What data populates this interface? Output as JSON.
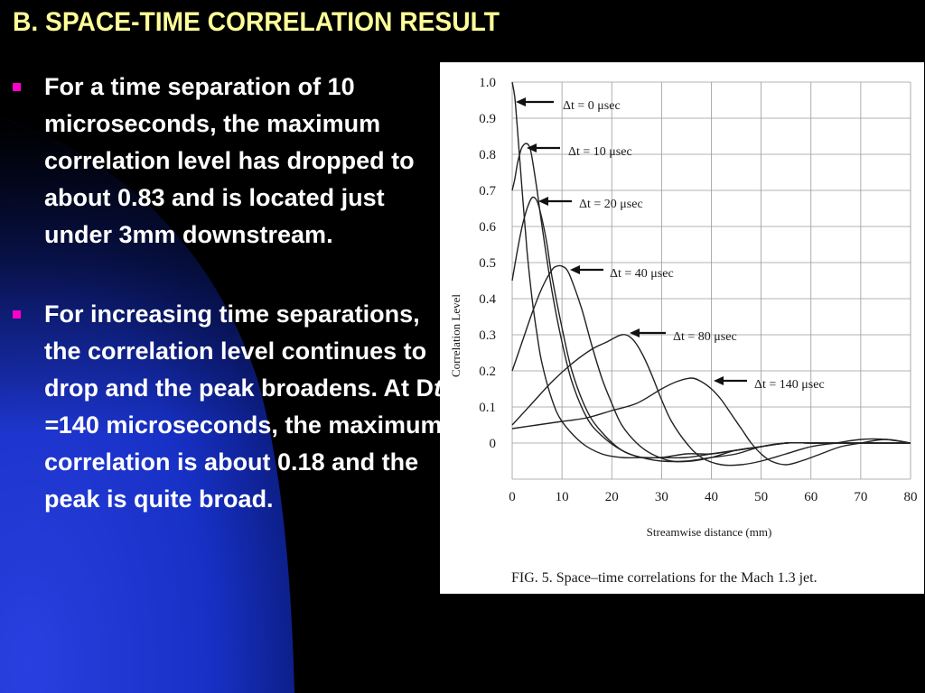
{
  "slide": {
    "title": "B. SPACE-TIME CORRELATION RESULT",
    "accent_colors": {
      "title": "#ffff99",
      "bullet_marker": "#ff00cc",
      "body_text": "#ffffff",
      "sweep": "#1a33cc",
      "background": "#000000"
    },
    "bullets": [
      {
        "segments": [
          "For a time separation of 10 microseconds, the maximum correlation level has dropped to about 0.83 and is located just under 3mm downstream."
        ]
      },
      {
        "segments": [
          "For increasing time separations, the correlation level continues to drop and the peak broadens. At D",
          "t =",
          "140 microseconds, the maximum correlation is about 0.18 and the peak is quite broad."
        ]
      }
    ]
  },
  "chart_data": {
    "type": "line",
    "title": "",
    "caption": "FIG. 5.  Space–time correlations for the Mach 1.3 jet.",
    "xlabel": "Streamwise distance (mm)",
    "ylabel": "Correlation Level",
    "xlim": [
      0,
      80
    ],
    "ylim": [
      -0.1,
      1.0
    ],
    "x_ticks": [
      "0",
      "10",
      "20",
      "30",
      "40",
      "50",
      "60",
      "70",
      "80"
    ],
    "y_ticks": [
      "1.0",
      "0.9",
      "0.8",
      "0.7",
      "0.6",
      "0.5",
      "0.4",
      "0.3",
      "0.2",
      "0.1",
      "0"
    ],
    "grid": true,
    "series": [
      {
        "name": "Δt = 0 μsec",
        "x": [
          0,
          0.5,
          1,
          2,
          3,
          4,
          5,
          6,
          8,
          10,
          14,
          18,
          22,
          26,
          30,
          35,
          40,
          45,
          50,
          55,
          60,
          65,
          70,
          75,
          80
        ],
        "y": [
          1.0,
          0.96,
          0.88,
          0.7,
          0.53,
          0.4,
          0.3,
          0.22,
          0.12,
          0.06,
          0.0,
          -0.03,
          -0.04,
          -0.04,
          -0.04,
          -0.03,
          -0.03,
          -0.02,
          -0.01,
          0.0,
          0.0,
          0.0,
          0.0,
          0.0,
          0.0
        ]
      },
      {
        "name": "Δt = 10 μsec",
        "x": [
          0,
          0.5,
          1,
          1.5,
          2,
          2.8,
          3.5,
          4,
          5,
          6,
          8,
          10,
          12,
          15,
          18,
          22,
          26,
          30,
          35,
          40,
          45,
          50,
          55,
          60,
          65,
          70,
          75,
          80
        ],
        "y": [
          0.7,
          0.73,
          0.77,
          0.8,
          0.82,
          0.83,
          0.82,
          0.79,
          0.7,
          0.6,
          0.42,
          0.28,
          0.17,
          0.07,
          0.02,
          -0.02,
          -0.04,
          -0.04,
          -0.04,
          -0.03,
          -0.02,
          -0.01,
          0.0,
          0.0,
          0.0,
          0.0,
          0.0,
          0.0
        ]
      },
      {
        "name": "Δt = 20 μsec",
        "x": [
          0,
          1,
          2,
          3,
          4,
          5,
          6,
          7,
          8,
          10,
          12,
          15,
          18,
          22,
          26,
          30,
          35,
          40,
          45,
          50,
          55,
          60,
          65,
          70,
          75,
          80
        ],
        "y": [
          0.45,
          0.53,
          0.6,
          0.65,
          0.68,
          0.67,
          0.62,
          0.55,
          0.46,
          0.32,
          0.2,
          0.09,
          0.03,
          -0.02,
          -0.04,
          -0.05,
          -0.05,
          -0.04,
          -0.03,
          -0.01,
          0.0,
          0.0,
          0.0,
          0.0,
          0.0,
          0.0
        ]
      },
      {
        "name": "Δt = 40 μsec",
        "x": [
          0,
          2,
          4,
          6,
          8,
          9,
          10,
          11,
          12,
          14,
          16,
          18,
          20,
          22,
          25,
          28,
          32,
          36,
          40,
          45,
          50,
          55,
          60,
          65,
          70,
          75,
          80
        ],
        "y": [
          0.2,
          0.28,
          0.36,
          0.43,
          0.48,
          0.49,
          0.49,
          0.48,
          0.45,
          0.37,
          0.27,
          0.18,
          0.11,
          0.05,
          0.0,
          -0.03,
          -0.05,
          -0.05,
          -0.04,
          -0.02,
          -0.01,
          0.0,
          0.0,
          0.0,
          0.0,
          0.0,
          0.0
        ]
      },
      {
        "name": "Δt = 80 μsec",
        "x": [
          0,
          4,
          8,
          12,
          16,
          19,
          22,
          24,
          26,
          28,
          30,
          32,
          35,
          38,
          42,
          46,
          50,
          55,
          60,
          65,
          70,
          75,
          80
        ],
        "y": [
          0.05,
          0.11,
          0.17,
          0.22,
          0.26,
          0.28,
          0.3,
          0.29,
          0.25,
          0.19,
          0.12,
          0.06,
          0.0,
          -0.04,
          -0.06,
          -0.06,
          -0.05,
          -0.03,
          -0.01,
          0.0,
          0.01,
          0.01,
          0.0
        ]
      },
      {
        "name": "Δt = 140 μsec",
        "x": [
          0,
          5,
          10,
          15,
          20,
          25,
          30,
          33,
          36,
          38,
          40,
          42,
          44,
          46,
          48,
          50,
          52,
          55,
          58,
          62,
          66,
          70,
          75,
          80
        ],
        "y": [
          0.04,
          0.05,
          0.06,
          0.07,
          0.09,
          0.11,
          0.15,
          0.17,
          0.18,
          0.17,
          0.15,
          0.12,
          0.08,
          0.04,
          0.0,
          -0.03,
          -0.05,
          -0.06,
          -0.05,
          -0.03,
          -0.01,
          0.0,
          0.01,
          0.0
        ]
      }
    ]
  }
}
